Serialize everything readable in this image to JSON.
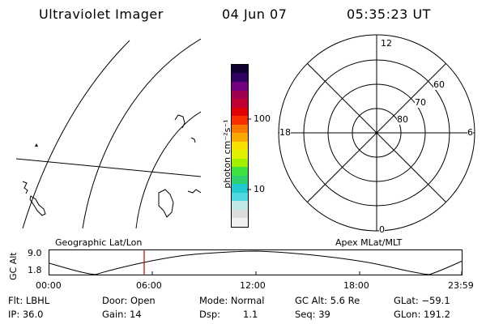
{
  "header": {
    "instrument": "Ultraviolet Imager",
    "date": "04 Jun 07",
    "time": "05:35:23 UT"
  },
  "colorbar": {
    "unit_label": "photon cm⁻²s⁻¹",
    "tick_100": "100",
    "tick_10": "10",
    "colors": [
      "#f0f0f0",
      "#dcdcdc",
      "#c0e8e8",
      "#50d8e0",
      "#20c8d0",
      "#30d070",
      "#40e040",
      "#a0f000",
      "#e0f000",
      "#f8e000",
      "#f8a800",
      "#f87800",
      "#f83000",
      "#e00000",
      "#c00030",
      "#a00050",
      "#700080",
      "#300060",
      "#100030"
    ]
  },
  "polar_plot": {
    "mlt_labels": {
      "top": "12",
      "bottom": "0",
      "left": "18",
      "right": "6"
    },
    "lat_labels": {
      "l60": "60",
      "l70": "70",
      "l80": "80"
    }
  },
  "timeline": {
    "left_label": "Geographic Lat/Lon",
    "right_label": "Apex MLat/MLT",
    "y_axis_title": "GC Alt",
    "y_max": "9.0",
    "y_min": "1.8",
    "x_ticks": [
      "00:00",
      "06:00",
      "12:00",
      "18:00",
      "23:59"
    ],
    "current_time_color": "#d00000"
  },
  "info": {
    "filter": "Flt: LBHL",
    "ip": "IP: 36.0",
    "door": "Door: Open",
    "gain": "Gain: 14",
    "mode": "Mode: Normal",
    "dsp": "Dsp:",
    "dsp_value": "1.1",
    "gc_alt": "GC Alt: 5.6 Re",
    "seq": "Seq: 39",
    "glat": "GLat: −59.1",
    "glon": "GLon: 191.2"
  }
}
